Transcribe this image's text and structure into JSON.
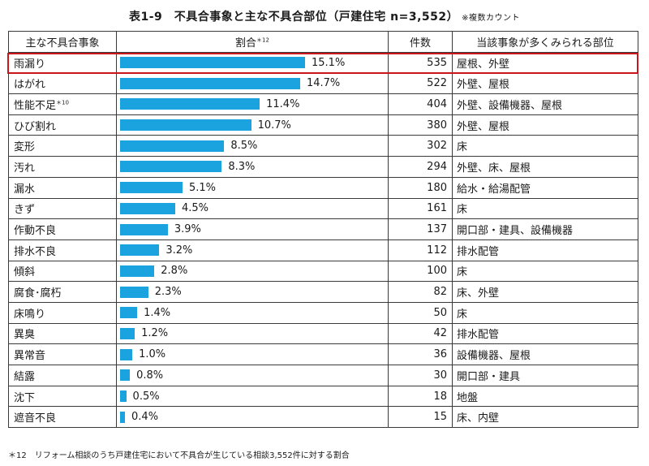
{
  "title": "表1-9　不具合事象と主な不具合部位（戸建住宅 n=3,552）",
  "title_note": "※複数カウント",
  "headers": {
    "event": "主な不具合事象",
    "ratio": "割合",
    "ratio_mark": "＊12",
    "count": "件数",
    "parts": "当該事象が多くみられる部位"
  },
  "highlight_color": "#c8161d",
  "bar_color": "#1aa3df",
  "chart_data": {
    "type": "bar",
    "orientation": "horizontal",
    "title": "表1-9　不具合事象と主な不具合部位（戸建住宅 n=3,552）",
    "categories": [
      "雨漏り",
      "はがれ",
      "性能不足",
      "ひび割れ",
      "変形",
      "汚れ",
      "漏水",
      "きず",
      "作動不良",
      "排水不良",
      "傾斜",
      "腐食･腐朽",
      "床鳴り",
      "異臭",
      "異常音",
      "結露",
      "沈下",
      "遮音不良"
    ],
    "values": [
      15.1,
      14.7,
      11.4,
      10.7,
      8.5,
      8.3,
      5.1,
      4.5,
      3.9,
      3.2,
      2.8,
      2.3,
      1.4,
      1.2,
      1.0,
      0.8,
      0.5,
      0.4
    ],
    "value_labels": [
      "15.1%",
      "14.7%",
      "11.4%",
      "10.7%",
      "8.5%",
      "8.3%",
      "5.1%",
      "4.5%",
      "3.9%",
      "3.2%",
      "2.8%",
      "2.3%",
      "1.4%",
      "1.2%",
      "1.0%",
      "0.8%",
      "0.5%",
      "0.4%"
    ],
    "xlim": [
      0,
      15.1
    ],
    "rows": [
      {
        "event": "雨漏り",
        "mark": "",
        "ratio": "15.1%",
        "count": "535",
        "parts": "屋根、外壁"
      },
      {
        "event": "はがれ",
        "mark": "",
        "ratio": "14.7%",
        "count": "522",
        "parts": "外壁、屋根"
      },
      {
        "event": "性能不足",
        "mark": "＊10",
        "ratio": "11.4%",
        "count": "404",
        "parts": "外壁、設備機器、屋根"
      },
      {
        "event": "ひび割れ",
        "mark": "",
        "ratio": "10.7%",
        "count": "380",
        "parts": "外壁、屋根"
      },
      {
        "event": "変形",
        "mark": "",
        "ratio": "8.5%",
        "count": "302",
        "parts": "床"
      },
      {
        "event": "汚れ",
        "mark": "",
        "ratio": "8.3%",
        "count": "294",
        "parts": "外壁、床、屋根"
      },
      {
        "event": "漏水",
        "mark": "",
        "ratio": "5.1%",
        "count": "180",
        "parts": "給水・給湯配管"
      },
      {
        "event": "きず",
        "mark": "",
        "ratio": "4.5%",
        "count": "161",
        "parts": "床"
      },
      {
        "event": "作動不良",
        "mark": "",
        "ratio": "3.9%",
        "count": "137",
        "parts": "開口部・建具、設備機器"
      },
      {
        "event": "排水不良",
        "mark": "",
        "ratio": "3.2%",
        "count": "112",
        "parts": "排水配管"
      },
      {
        "event": "傾斜",
        "mark": "",
        "ratio": "2.8%",
        "count": "100",
        "parts": "床"
      },
      {
        "event": "腐食･腐朽",
        "mark": "",
        "ratio": "2.3%",
        "count": "82",
        "parts": "床、外壁"
      },
      {
        "event": "床鳴り",
        "mark": "",
        "ratio": "1.4%",
        "count": "50",
        "parts": "床"
      },
      {
        "event": "異臭",
        "mark": "",
        "ratio": "1.2%",
        "count": "42",
        "parts": "排水配管"
      },
      {
        "event": "異常音",
        "mark": "",
        "ratio": "1.0%",
        "count": "36",
        "parts": "設備機器、屋根"
      },
      {
        "event": "結露",
        "mark": "",
        "ratio": "0.8%",
        "count": "30",
        "parts": "開口部・建具"
      },
      {
        "event": "沈下",
        "mark": "",
        "ratio": "0.5%",
        "count": "18",
        "parts": "地盤"
      },
      {
        "event": "遮音不良",
        "mark": "",
        "ratio": "0.4%",
        "count": "15",
        "parts": "床、内壁"
      }
    ]
  },
  "footnote": "＊12　リフォーム相談のうち戸建住宅において不具合が生じている相談3,552件に対する割合"
}
